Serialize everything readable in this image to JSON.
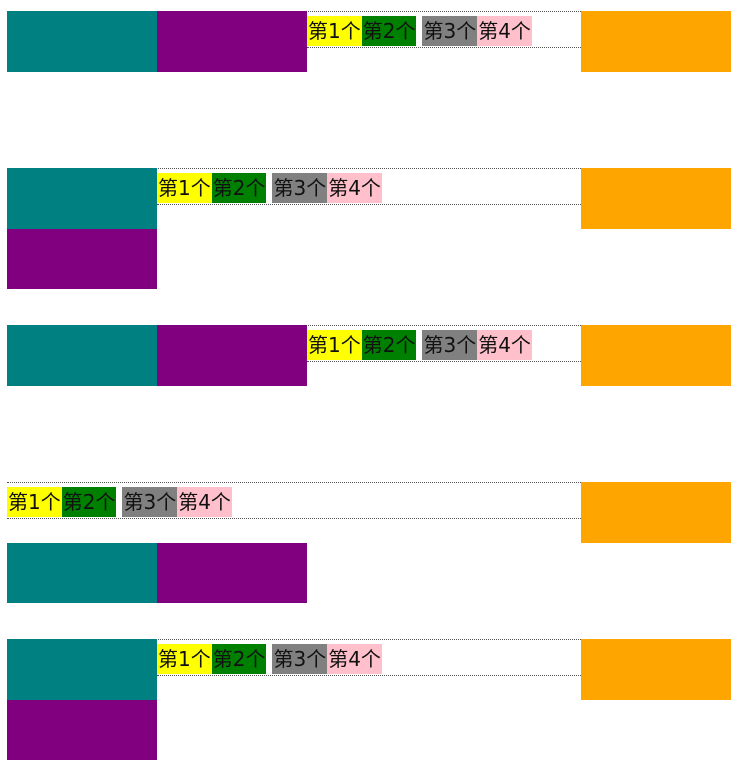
{
  "chips": [
    {
      "label": "第1个",
      "color": "#ffff00"
    },
    {
      "label": "第2个",
      "color": "#008000"
    },
    {
      "label": "第3个",
      "color": "#808080"
    },
    {
      "label": "第4个",
      "color": "#ffc0cb"
    }
  ],
  "block_colors": {
    "teal": "#008080",
    "purple": "#800080",
    "orange": "#ffa500"
  },
  "sections": [
    {
      "variant": "row-inline"
    },
    {
      "variant": "stacked-left"
    },
    {
      "variant": "row-inline"
    },
    {
      "variant": "chips-first"
    },
    {
      "variant": "stacked-left"
    }
  ]
}
